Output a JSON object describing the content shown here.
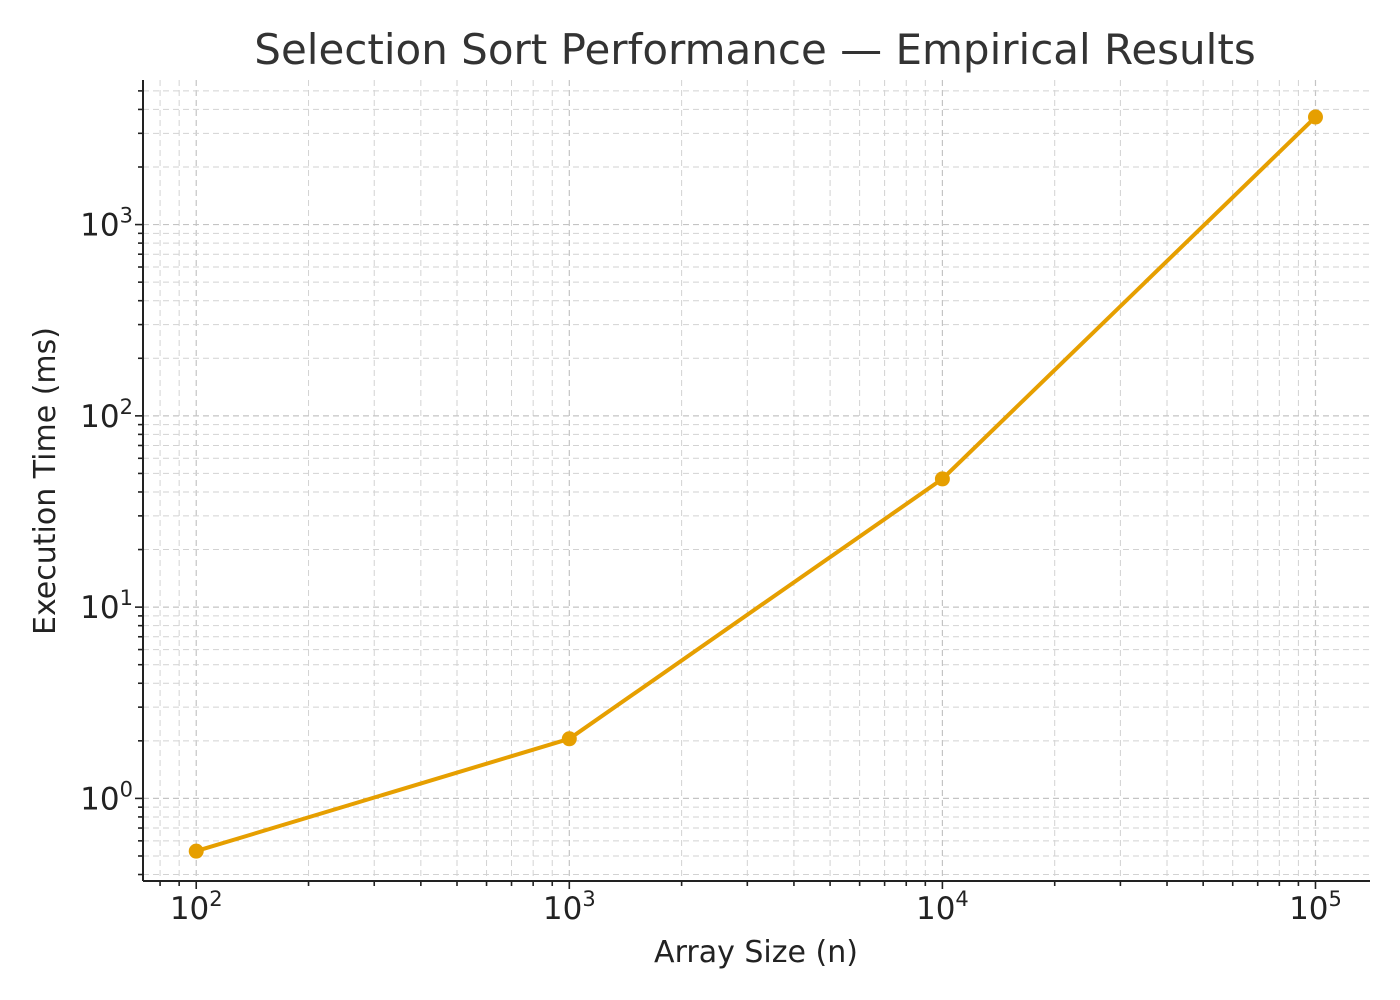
{
  "chart_data": {
    "type": "line",
    "title": "Selection Sort Performance — Empirical Results",
    "xlabel": "Array Size (n)",
    "ylabel": "Execution Time (ms)",
    "x_scale": "log",
    "y_scale": "log",
    "xlim": [
      72,
      140000
    ],
    "ylim": [
      0.37,
      5700
    ],
    "grid": true,
    "x_ticks": [
      {
        "value": 100,
        "base": "10",
        "exp": "2"
      },
      {
        "value": 1000,
        "base": "10",
        "exp": "3"
      },
      {
        "value": 10000,
        "base": "10",
        "exp": "4"
      },
      {
        "value": 100000,
        "base": "10",
        "exp": "5"
      }
    ],
    "y_ticks": [
      {
        "value": 1,
        "base": "10",
        "exp": "0"
      },
      {
        "value": 10,
        "base": "10",
        "exp": "1"
      },
      {
        "value": 100,
        "base": "10",
        "exp": "2"
      },
      {
        "value": 1000,
        "base": "10",
        "exp": "3"
      }
    ],
    "series": [
      {
        "color": "#e69f00",
        "x": [
          100,
          1000,
          10000,
          100000
        ],
        "y": [
          0.53,
          2.05,
          46.8,
          3650
        ]
      }
    ]
  }
}
